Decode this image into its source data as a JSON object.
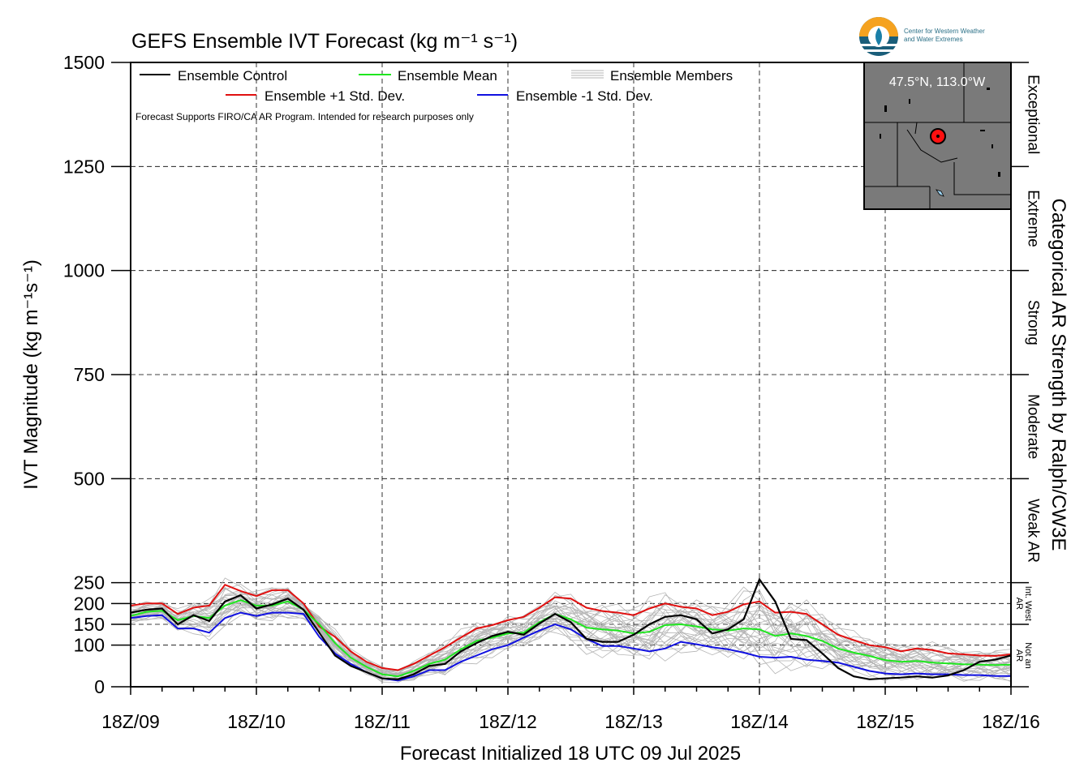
{
  "chart_data": {
    "type": "line",
    "title": "GEFS Ensemble IVT Forecast (kg m⁻¹ s⁻¹)",
    "xlabel": "Forecast Initialized 18 UTC 09 Jul 2025",
    "ylabel": "IVT Magnitude (kg m⁻¹s⁻¹)",
    "right_label": "Categorical AR Strength by Ralph/CW3E",
    "disclaimer": "Forecast Supports FIRO/CA AR Program. Intended for research purposes only",
    "ylim": [
      0,
      1500
    ],
    "xlim_hours": [
      0,
      168
    ],
    "x_ticks": [
      {
        "hour": 0,
        "label": "18Z/09"
      },
      {
        "hour": 24,
        "label": "18Z/10"
      },
      {
        "hour": 48,
        "label": "18Z/11"
      },
      {
        "hour": 72,
        "label": "18Z/12"
      },
      {
        "hour": 96,
        "label": "18Z/13"
      },
      {
        "hour": 120,
        "label": "18Z/14"
      },
      {
        "hour": 144,
        "label": "18Z/15"
      },
      {
        "hour": 168,
        "label": "18Z/16"
      }
    ],
    "y_ticks": [
      {
        "value": 0,
        "label": "0"
      },
      {
        "value": 100,
        "label": "100"
      },
      {
        "value": 150,
        "label": "150"
      },
      {
        "value": 200,
        "label": "200"
      },
      {
        "value": 250,
        "label": "250"
      },
      {
        "value": 500,
        "label": "500"
      },
      {
        "value": 750,
        "label": "750"
      },
      {
        "value": 1000,
        "label": "1000"
      },
      {
        "value": 1250,
        "label": "1250"
      },
      {
        "value": 1500,
        "label": "1500"
      }
    ],
    "categories_right": [
      {
        "lo": 1250,
        "hi": 1500,
        "label": "Exceptional"
      },
      {
        "lo": 1000,
        "hi": 1250,
        "label": "Extreme"
      },
      {
        "lo": 750,
        "hi": 1000,
        "label": "Strong"
      },
      {
        "lo": 500,
        "hi": 750,
        "label": "Moderate"
      },
      {
        "lo": 250,
        "hi": 500,
        "label": "Weak AR"
      },
      {
        "lo": 150,
        "hi": 250,
        "label": "Int. West AR"
      },
      {
        "lo": 0,
        "hi": 150,
        "label": "Not an AR"
      }
    ],
    "legend": {
      "placement": "top-left",
      "entries": [
        {
          "label": "Ensemble Control",
          "color": "#000000"
        },
        {
          "label": "Ensemble Mean",
          "color": "#1fe61f"
        },
        {
          "label": "Ensemble Members",
          "color": "#b4b4b4"
        },
        {
          "label": "Ensemble +1 Std. Dev.",
          "color": "#e01010"
        },
        {
          "label": "Ensemble -1 Std. Dev.",
          "color": "#1010e0"
        }
      ]
    },
    "inset_map": {
      "location": "47.5°N, 113.0°W"
    },
    "logo": {
      "line1": "Center for Western Weather",
      "line2": "and Water Extremes"
    },
    "x": [
      0,
      3,
      6,
      9,
      12,
      15,
      18,
      21,
      24,
      27,
      30,
      33,
      36,
      39,
      42,
      45,
      48,
      51,
      54,
      57,
      60,
      63,
      66,
      69,
      72,
      75,
      78,
      81,
      84,
      87,
      90,
      93,
      96,
      99,
      102,
      105,
      108,
      111,
      114,
      117,
      120,
      123,
      126,
      129,
      132,
      135,
      138,
      141,
      144,
      147,
      150,
      153,
      156,
      159,
      162,
      165,
      168
    ],
    "series": [
      {
        "name": "Ensemble Control",
        "color": "#000000",
        "values": [
          178,
          185,
          188,
          150,
          172,
          158,
          205,
          220,
          188,
          198,
          212,
          185,
          130,
          75,
          50,
          35,
          20,
          18,
          30,
          50,
          55,
          85,
          105,
          122,
          132,
          125,
          152,
          175,
          155,
          115,
          108,
          108,
          125,
          150,
          168,
          172,
          162,
          128,
          138,
          162,
          258,
          205,
          115,
          112,
          80,
          45,
          25,
          18,
          20,
          22,
          25,
          22,
          27,
          40,
          60,
          65,
          75
        ]
      },
      {
        "name": "Ensemble Mean",
        "color": "#1fe61f",
        "values": [
          170,
          180,
          183,
          160,
          170,
          165,
          195,
          208,
          195,
          195,
          205,
          185,
          150,
          105,
          70,
          48,
          30,
          25,
          38,
          55,
          65,
          90,
          110,
          118,
          128,
          130,
          155,
          175,
          162,
          142,
          138,
          135,
          128,
          132,
          148,
          150,
          145,
          138,
          135,
          140,
          138,
          122,
          128,
          122,
          110,
          92,
          82,
          74,
          64,
          60,
          62,
          58,
          56,
          54,
          53,
          52,
          53
        ]
      },
      {
        "name": "Ensemble +1 Std. Dev.",
        "color": "#e01010",
        "values": [
          195,
          200,
          200,
          175,
          190,
          195,
          245,
          230,
          218,
          232,
          232,
          200,
          145,
          120,
          85,
          60,
          45,
          40,
          55,
          75,
          95,
          118,
          140,
          148,
          160,
          168,
          190,
          215,
          212,
          190,
          182,
          178,
          172,
          188,
          200,
          192,
          188,
          172,
          180,
          198,
          205,
          178,
          180,
          175,
          150,
          125,
          112,
          100,
          95,
          85,
          92,
          88,
          80,
          78,
          75,
          74,
          78
        ]
      },
      {
        "name": "Ensemble -1 Std. Dev.",
        "color": "#1010e0",
        "values": [
          165,
          170,
          172,
          140,
          140,
          130,
          165,
          178,
          170,
          178,
          178,
          175,
          120,
          80,
          55,
          35,
          20,
          15,
          25,
          40,
          40,
          60,
          75,
          90,
          100,
          118,
          135,
          150,
          138,
          115,
          98,
          98,
          92,
          85,
          92,
          108,
          102,
          95,
          90,
          82,
          72,
          70,
          72,
          65,
          62,
          58,
          48,
          38,
          32,
          30,
          32,
          30,
          30,
          28,
          28,
          26,
          26
        ]
      }
    ]
  }
}
